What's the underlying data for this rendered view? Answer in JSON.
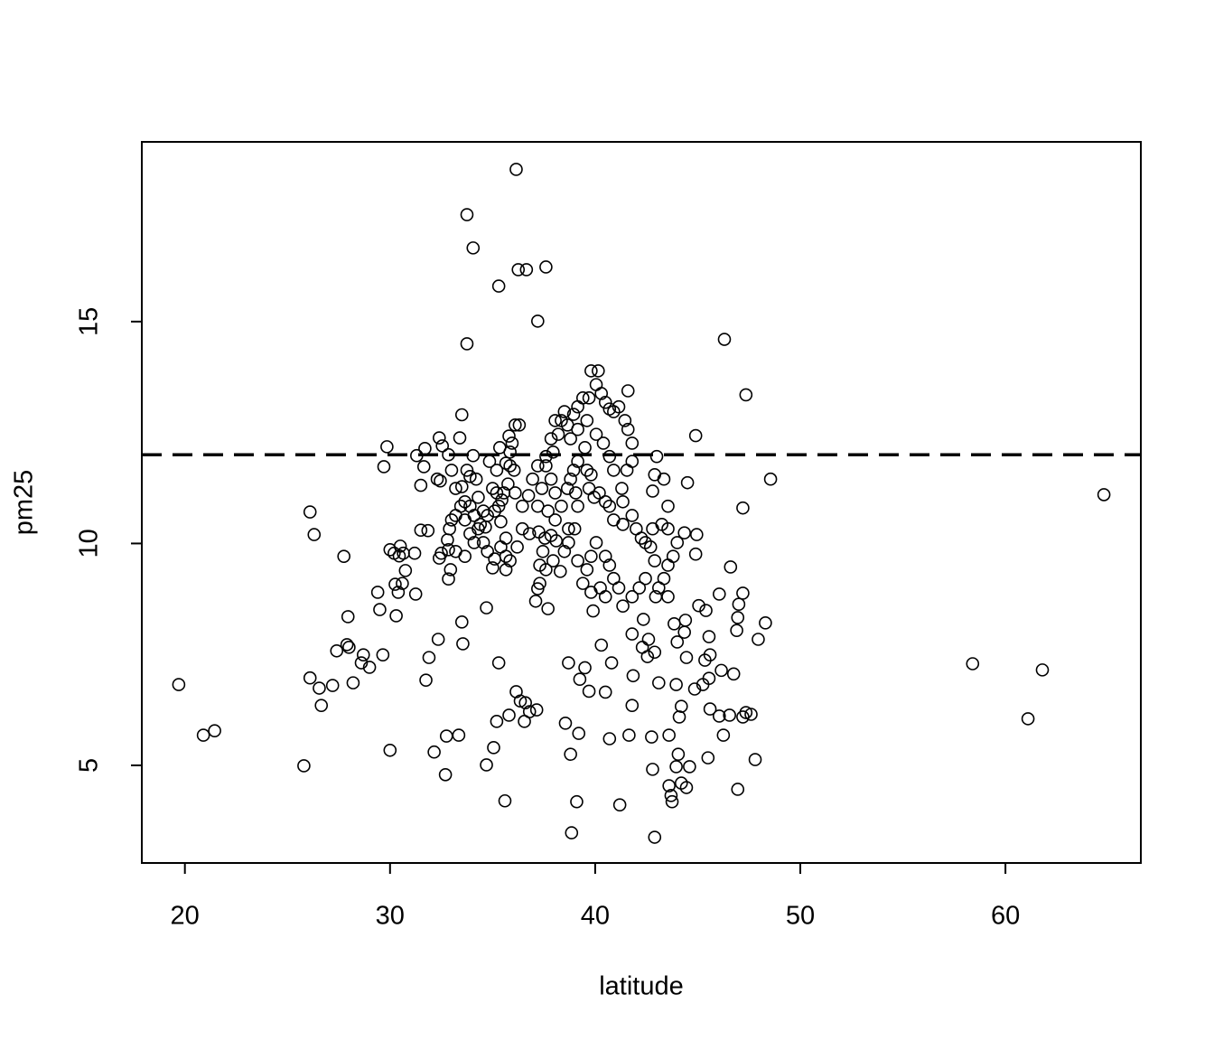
{
  "chart_data": {
    "type": "scatter",
    "x_label": "latitude",
    "y_label": "pm25",
    "xlim": [
      17.9,
      66.6
    ],
    "ylim": [
      2.8,
      19.05
    ],
    "xticks": [
      20,
      30,
      40,
      50,
      60
    ],
    "yticks": [
      5,
      10,
      15
    ],
    "hline": {
      "y": 12,
      "dashed": true
    },
    "color": "#000000",
    "x": [
      19.7,
      20.9,
      21.45,
      25.8,
      26.1,
      26.3,
      26.1,
      26.55,
      26.65,
      27.2,
      27.75,
      27.95,
      27.9,
      28.0,
      27.4,
      28.2,
      28.6,
      28.7,
      29.0,
      29.4,
      29.5,
      29.65,
      29.85,
      29.7,
      30.0,
      30.0,
      30.2,
      30.45,
      30.65,
      30.25,
      30.4,
      30.6,
      30.3,
      30.75,
      30.5,
      31.25,
      31.2,
      31.3,
      31.5,
      31.7,
      31.65,
      31.5,
      31.85,
      31.9,
      31.75,
      32.15,
      32.35,
      32.4,
      32.55,
      32.3,
      32.45,
      32.4,
      32.5,
      32.85,
      32.85,
      32.8,
      32.85,
      32.7,
      32.75,
      33.35,
      33.5,
      33.4,
      33.5,
      33.55,
      33.75,
      33.75,
      34.05,
      33.5,
      33.65,
      33.9,
      34.05,
      33.75,
      34.7,
      35.05,
      35.2,
      34.65,
      34.7,
      35.3,
      35.3,
      35.6,
      35.8,
      36.15,
      36.25,
      36.65,
      37.6,
      37.2,
      36.15,
      36.35,
      36.6,
      36.55,
      36.8,
      37.15,
      37.1,
      37.7,
      37.2,
      37.3,
      38.55,
      38.7,
      38.8,
      38.85,
      39.1,
      39.2,
      39.25,
      39.5,
      39.7,
      39.9,
      40.3,
      40.5,
      40.7,
      40.8,
      41.2,
      41.65,
      41.8,
      41.85,
      41.8,
      42.3,
      42.55,
      42.35,
      42.6,
      42.8,
      42.9,
      42.75,
      43.1,
      42.9,
      43.6,
      43.6,
      43.7,
      43.75,
      43.95,
      44.1,
      44.2,
      44.05,
      43.95,
      44.2,
      44.45,
      44.6,
      44.4,
      44.35,
      44.45,
      44.85,
      45.25,
      45.35,
      45.5,
      45.6,
      45.55,
      45.6,
      45.55,
      46.05,
      46.25,
      46.15,
      46.55,
      46.75,
      46.95,
      47.2,
      47.35,
      47.6,
      47.8,
      46.9,
      46.95,
      47.0,
      47.2,
      47.95,
      48.3,
      48.55,
      47.2,
      47.35,
      46.3,
      44.9,
      44.5,
      44.95,
      44.35,
      44.9,
      46.6,
      46.05,
      45.05,
      45.4,
      58.4,
      61.1,
      61.8,
      64.8,
      37.2,
      36.95,
      36.75,
      36.45,
      36.1,
      35.75,
      35.8,
      35.95,
      35.85,
      36.05,
      35.45,
      35.1,
      34.75,
      34.55,
      34.3,
      34.2,
      34.85,
      35.2,
      35.4,
      35.65,
      35.4,
      35.65,
      35.1,
      34.75,
      35.0,
      35.65,
      35.85,
      36.2,
      36.45,
      36.8,
      37.25,
      37.55,
      37.85,
      37.45,
      37.3,
      37.6,
      37.95,
      38.3,
      38.1,
      38.5,
      38.7,
      39.0,
      39.15,
      39.05,
      38.8,
      38.95,
      39.15,
      39.5,
      39.6,
      39.8,
      39.7,
      39.95,
      40.2,
      40.5,
      40.7,
      40.9,
      41.35,
      41.8,
      42.0,
      42.25,
      42.45,
      42.7,
      42.9,
      42.45,
      42.15,
      41.8,
      41.35,
      41.15,
      40.9,
      40.7,
      40.5,
      40.05,
      39.8,
      39.6,
      39.4,
      39.8,
      40.25,
      40.5,
      39.15,
      38.7,
      38.35,
      38.05,
      37.85,
      37.6,
      37.95,
      38.2,
      38.35,
      38.65,
      38.95,
      39.15,
      39.4,
      39.7,
      39.8,
      40.15,
      40.05,
      40.3,
      40.5,
      40.7,
      40.9,
      41.15,
      41.6,
      41.45,
      41.6,
      41.8,
      41.8,
      41.55,
      41.3,
      41.35,
      40.9,
      40.7,
      40.4,
      40.05,
      39.6,
      39.15,
      38.8,
      38.5,
      38.05,
      37.6,
      37.85,
      37.4,
      37.2,
      37.7,
      38.05,
      38.65,
      43.0,
      42.9,
      42.8,
      43.35,
      43.55,
      43.25,
      42.8,
      43.55,
      44.0,
      43.8,
      43.55,
      43.35,
      43.1,
      42.95,
      43.55,
      43.85,
      44.0,
      33.0,
      33.2,
      33.45,
      33.65,
      33.9,
      34.1,
      34.3,
      34.55,
      33.2,
      33.0,
      32.9,
      33.2,
      32.95,
      33.65,
      33.9,
      34.1,
      34.4,
      35.0,
      35.2,
      35.3,
      35.55,
      35.85,
      35.65,
      35.35,
      36.1,
      36.3
    ],
    "values": [
      6.82,
      5.68,
      5.78,
      4.99,
      10.71,
      10.2,
      6.97,
      6.74,
      6.35,
      6.8,
      9.71,
      8.35,
      7.72,
      7.66,
      7.58,
      6.86,
      7.31,
      7.49,
      7.21,
      8.9,
      8.51,
      7.49,
      12.18,
      11.73,
      5.34,
      9.86,
      9.78,
      9.72,
      9.78,
      9.08,
      8.9,
      9.1,
      8.37,
      9.39,
      9.94,
      8.86,
      9.78,
      11.98,
      11.31,
      12.14,
      11.73,
      10.3,
      10.29,
      7.43,
      6.92,
      5.3,
      7.84,
      12.38,
      12.2,
      11.45,
      11.41,
      9.67,
      9.78,
      9.2,
      12.0,
      10.08,
      9.86,
      4.79,
      5.66,
      5.68,
      12.9,
      12.38,
      8.23,
      7.74,
      14.5,
      17.41,
      16.66,
      11.28,
      10.94,
      11.51,
      11.98,
      11.65,
      5.01,
      5.4,
      5.99,
      10.37,
      8.55,
      7.31,
      15.8,
      4.2,
      6.13,
      18.43,
      16.17,
      16.17,
      16.23,
      15.01,
      6.66,
      6.45,
      6.41,
      5.99,
      6.21,
      6.25,
      8.7,
      8.53,
      8.98,
      9.1,
      5.95,
      7.31,
      5.25,
      3.48,
      4.18,
      5.72,
      6.94,
      7.2,
      6.67,
      8.48,
      7.71,
      6.65,
      5.6,
      7.31,
      4.11,
      5.68,
      6.35,
      7.02,
      7.96,
      7.66,
      7.45,
      8.29,
      7.84,
      4.91,
      3.38,
      5.64,
      6.86,
      7.55,
      5.68,
      4.54,
      4.32,
      4.18,
      6.82,
      6.09,
      6.33,
      5.25,
      4.97,
      4.6,
      4.5,
      4.97,
      8.27,
      8.0,
      7.43,
      6.72,
      6.82,
      7.37,
      5.17,
      6.27,
      6.96,
      7.49,
      7.9,
      6.11,
      5.68,
      7.14,
      6.13,
      7.06,
      4.46,
      6.09,
      6.19,
      6.15,
      5.13,
      8.04,
      8.33,
      8.63,
      8.88,
      7.84,
      8.21,
      11.45,
      10.8,
      13.35,
      14.6,
      12.43,
      11.37,
      10.2,
      10.24,
      9.76,
      9.47,
      8.86,
      8.6,
      8.49,
      7.29,
      6.05,
      7.15,
      11.1,
      11.75,
      11.45,
      11.08,
      10.84,
      11.14,
      11.34,
      12.42,
      12.26,
      12.06,
      11.65,
      10.98,
      10.73,
      10.63,
      10.73,
      11.04,
      11.45,
      11.85,
      11.65,
      10.49,
      10.12,
      9.92,
      9.71,
      9.65,
      9.82,
      9.45,
      9.41,
      9.61,
      9.92,
      10.33,
      10.22,
      10.26,
      10.12,
      10.18,
      9.82,
      9.51,
      9.41,
      9.61,
      9.37,
      10.06,
      9.82,
      10.33,
      10.33,
      10.84,
      11.14,
      11.45,
      11.65,
      11.85,
      12.16,
      11.65,
      11.55,
      11.24,
      11.04,
      11.14,
      10.94,
      10.84,
      10.53,
      10.43,
      10.63,
      10.33,
      10.12,
      10.02,
      9.92,
      9.61,
      9.21,
      9.0,
      8.8,
      8.59,
      9.0,
      9.21,
      9.51,
      9.71,
      10.02,
      9.71,
      9.41,
      9.1,
      8.9,
      9.0,
      8.8,
      9.61,
      10.02,
      10.84,
      11.14,
      11.45,
      11.75,
      12.06,
      12.46,
      12.77,
      12.67,
      12.91,
      13.08,
      13.28,
      13.28,
      13.89,
      13.89,
      13.58,
      13.38,
      13.18,
      13.03,
      12.97,
      13.08,
      13.44,
      12.77,
      12.57,
      12.26,
      11.85,
      11.65,
      11.24,
      10.94,
      11.65,
      11.96,
      12.26,
      12.46,
      12.77,
      12.57,
      12.36,
      12.97,
      12.77,
      11.96,
      12.36,
      11.24,
      10.84,
      10.73,
      10.53,
      11.24,
      11.96,
      11.55,
      11.18,
      11.45,
      10.84,
      10.43,
      10.33,
      10.33,
      10.02,
      9.71,
      9.51,
      9.21,
      9.0,
      8.8,
      8.8,
      8.19,
      7.78,
      11.65,
      11.24,
      10.84,
      10.53,
      10.22,
      10.02,
      10.33,
      10.02,
      10.63,
      10.53,
      10.33,
      9.82,
      9.41,
      9.71,
      10.84,
      10.63,
      10.43,
      11.24,
      11.14,
      10.84,
      11.14,
      11.75,
      11.81,
      12.16,
      12.67,
      12.67
    ]
  }
}
